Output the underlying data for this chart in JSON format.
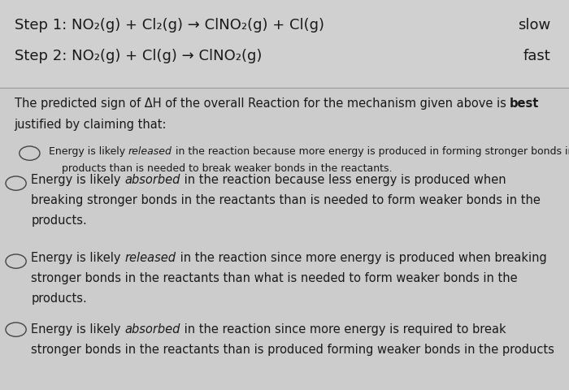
{
  "bg_color": "#cccccc",
  "text_color": "#1a1a1a",
  "step1_text": "Step 1: NO₂(g) + Cl₂(g) → ClNO₂(g) + Cl(g)",
  "step2_text": "Step 2: NO₂(g) + Cl(g) → ClNO₂(g)",
  "step1_rate": "slow",
  "step2_rate": "fast",
  "question_pre": "The predicted sign of ΔH of the overall Reaction for the mechanism given above is ",
  "question_bold": "best",
  "question_line2": "justified by claiming that:",
  "opt1_pre": "Energy is likely ",
  "opt1_italic": "released",
  "opt1_post": " in the reaction because more energy is produced in forming stronger bonds in the",
  "opt1_line2": "products than is needed to break weaker bonds in the reactants.",
  "opt2_pre": "Energy is likely ",
  "opt2_italic": "absorbed",
  "opt2_post": " in the reaction because less energy is produced when",
  "opt2_line2": "breaking stronger bonds in the reactants than is needed to form weaker bonds in the",
  "opt2_line3": "products.",
  "opt3_pre": "Energy is likely ",
  "opt3_italic": "released",
  "opt3_post": " in the reaction since more energy is produced when breaking",
  "opt3_line2": "stronger bonds in the reactants than what is needed to form weaker bonds in the",
  "opt3_line3": "products.",
  "opt4_pre": "Energy is likely ",
  "opt4_italic": "absorbed",
  "opt4_post": " in the reaction since more energy is required to break",
  "opt4_line2": "stronger bonds in the reactants than is produced forming weaker bonds in the products",
  "header_fs": 13.0,
  "body_fs": 10.5,
  "small_fs": 9.0
}
